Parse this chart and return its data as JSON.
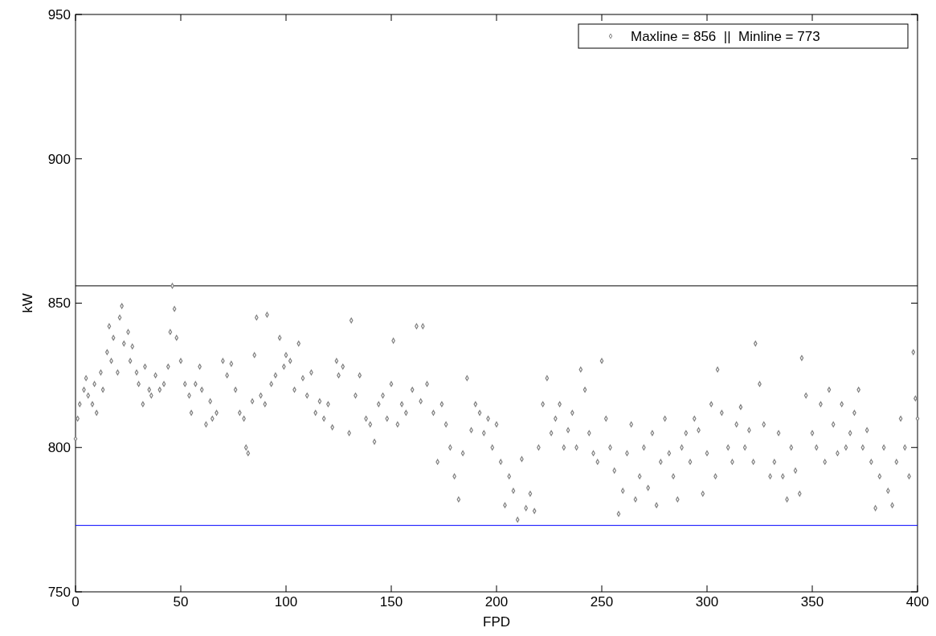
{
  "chart_data": {
    "type": "scatter",
    "xlabel": "FPD",
    "ylabel": "kW",
    "xlim": [
      0,
      400
    ],
    "ylim": [
      750,
      950
    ],
    "xticks": [
      0,
      50,
      100,
      150,
      200,
      250,
      300,
      350,
      400
    ],
    "yticks": [
      750,
      800,
      850,
      900,
      950
    ],
    "grid": false,
    "legend": "top right",
    "marker": "diamond",
    "series": [
      {
        "name": "Maxline = 856  ||  Minline = 773",
        "color": "#808080",
        "x": [
          0,
          1,
          2,
          4,
          5,
          6,
          8,
          9,
          10,
          12,
          13,
          15,
          16,
          17,
          18,
          20,
          21,
          22,
          23,
          25,
          26,
          27,
          29,
          30,
          32,
          33,
          35,
          36,
          38,
          40,
          42,
          44,
          45,
          46,
          47,
          48,
          50,
          52,
          54,
          55,
          57,
          59,
          60,
          62,
          64,
          65,
          67,
          70,
          72,
          74,
          76,
          78,
          80,
          81,
          82,
          84,
          85,
          86,
          88,
          90,
          91,
          93,
          95,
          97,
          99,
          100,
          102,
          104,
          106,
          108,
          110,
          112,
          114,
          116,
          118,
          120,
          122,
          124,
          125,
          127,
          130,
          131,
          133,
          135,
          138,
          140,
          142,
          144,
          146,
          148,
          150,
          151,
          153,
          155,
          157,
          160,
          162,
          164,
          165,
          167,
          170,
          172,
          174,
          176,
          178,
          180,
          182,
          184,
          186,
          188,
          190,
          192,
          194,
          196,
          198,
          200,
          202,
          204,
          206,
          208,
          210,
          212,
          214,
          216,
          218,
          220,
          222,
          224,
          226,
          228,
          230,
          232,
          234,
          236,
          238,
          240,
          242,
          244,
          246,
          248,
          250,
          252,
          254,
          256,
          258,
          260,
          262,
          264,
          266,
          268,
          270,
          272,
          274,
          276,
          278,
          280,
          282,
          284,
          286,
          288,
          290,
          292,
          294,
          296,
          298,
          300,
          302,
          304,
          305,
          307,
          310,
          312,
          314,
          316,
          318,
          320,
          322,
          323,
          325,
          327,
          330,
          332,
          334,
          336,
          338,
          340,
          342,
          344,
          345,
          347,
          350,
          352,
          354,
          356,
          358,
          360,
          362,
          364,
          366,
          368,
          370,
          372,
          374,
          376,
          378,
          380,
          382,
          384,
          386,
          388,
          390,
          392,
          394,
          396,
          398,
          399,
          400
        ],
        "values": [
          803,
          810,
          815,
          820,
          824,
          818,
          815,
          822,
          812,
          826,
          820,
          833,
          842,
          830,
          838,
          826,
          845,
          849,
          836,
          840,
          830,
          835,
          826,
          822,
          815,
          828,
          820,
          818,
          825,
          820,
          822,
          828,
          840,
          856,
          848,
          838,
          830,
          822,
          818,
          812,
          822,
          828,
          820,
          808,
          816,
          810,
          812,
          830,
          825,
          829,
          820,
          812,
          810,
          800,
          798,
          816,
          832,
          845,
          818,
          815,
          846,
          822,
          825,
          838,
          828,
          832,
          830,
          820,
          836,
          824,
          818,
          826,
          812,
          816,
          810,
          815,
          807,
          830,
          825,
          828,
          805,
          844,
          818,
          825,
          810,
          808,
          802,
          815,
          818,
          810,
          822,
          837,
          808,
          815,
          812,
          820,
          842,
          816,
          842,
          822,
          812,
          795,
          815,
          808,
          800,
          790,
          782,
          798,
          824,
          806,
          815,
          812,
          805,
          810,
          800,
          808,
          795,
          780,
          790,
          785,
          775,
          796,
          779,
          784,
          778,
          800,
          815,
          824,
          805,
          810,
          815,
          800,
          806,
          812,
          800,
          827,
          820,
          805,
          798,
          795,
          830,
          810,
          800,
          792,
          777,
          785,
          798,
          808,
          782,
          790,
          800,
          786,
          805,
          780,
          795,
          810,
          798,
          790,
          782,
          800,
          805,
          795,
          810,
          806,
          784,
          798,
          815,
          790,
          827,
          812,
          800,
          795,
          808,
          814,
          800,
          806,
          795,
          836,
          822,
          808,
          790,
          795,
          805,
          790,
          782,
          800,
          792,
          784,
          831,
          818,
          805,
          800,
          815,
          795,
          820,
          808,
          798,
          815,
          800,
          805,
          812,
          820,
          800,
          806,
          795,
          779,
          790,
          800,
          785,
          780,
          795,
          810,
          800,
          790,
          833,
          817,
          810
        ]
      }
    ],
    "ref_lines": [
      {
        "axis": "y",
        "value": 856,
        "color": "#000000"
      },
      {
        "axis": "y",
        "value": 773,
        "color": "#0000ff"
      }
    ]
  }
}
